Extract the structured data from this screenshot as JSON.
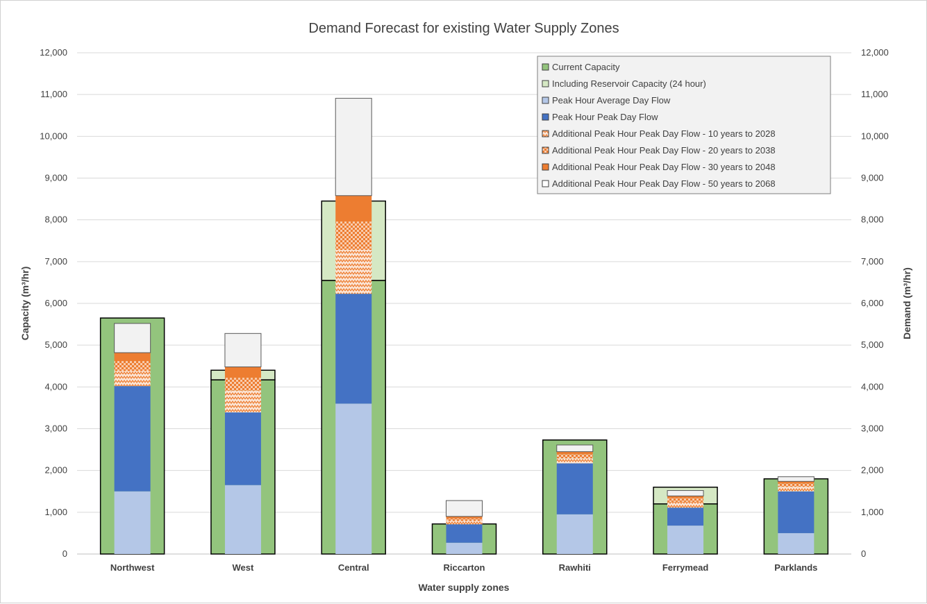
{
  "chart_data": {
    "type": "bar",
    "title": "Demand Forecast for existing Water Supply Zones",
    "xlabel": "Water supply zones",
    "ylabel_left": "Capacity (m³/hr)",
    "ylabel_right": "Demand (m³/hr)",
    "ylim": [
      0,
      12000
    ],
    "y_ticks": [
      "0",
      "1,000",
      "2,000",
      "3,000",
      "4,000",
      "5,000",
      "6,000",
      "7,000",
      "8,000",
      "9,000",
      "10,000",
      "11,000",
      "12,000"
    ],
    "grid": true,
    "legend_position": "top-right",
    "categories": [
      "Northwest",
      "West",
      "Central",
      "Riccarton",
      "Rawhiti",
      "Ferrymead",
      "Parklands"
    ],
    "capacity_series": [
      {
        "name": "Current Capacity",
        "color": "#93c47d",
        "values": [
          5650,
          4170,
          6550,
          720,
          2730,
          1200,
          1800
        ]
      },
      {
        "name": "Including Reservoir Capacity (24 hour)",
        "color": "#d5e8c4",
        "values": [
          0,
          230,
          1900,
          0,
          0,
          400,
          0
        ]
      }
    ],
    "demand_series": [
      {
        "name": "Peak Hour Average Day Flow",
        "color": "#b4c7e7",
        "pattern": "solid",
        "values": [
          1500,
          1650,
          3600,
          270,
          950,
          680,
          500
        ]
      },
      {
        "name": "Peak Hour Peak Day Flow",
        "color": "#4472c4",
        "pattern": "solid",
        "values": [
          2520,
          1740,
          2630,
          440,
          1220,
          430,
          1000
        ]
      },
      {
        "name": "Additional Peak Hour Peak Day Flow - 10 years to 2028",
        "color": "#ed7d31",
        "pattern": "zigzag",
        "values": [
          360,
          520,
          1050,
          80,
          120,
          140,
          110
        ]
      },
      {
        "name": "Additional Peak Hour Peak Day Flow - 20 years to 2038",
        "color": "#ed7d31",
        "pattern": "checker",
        "values": [
          240,
          310,
          680,
          60,
          100,
          90,
          80
        ]
      },
      {
        "name": "Additional Peak Hour Peak Day Flow - 30 years to 2048",
        "color": "#ed7d31",
        "pattern": "solid",
        "values": [
          200,
          260,
          620,
          50,
          60,
          50,
          50
        ]
      },
      {
        "name": "Additional Peak Hour Peak Day Flow - 50 years to 2068",
        "color": "#f2f2f2",
        "pattern": "outline",
        "values": [
          700,
          800,
          2330,
          380,
          160,
          130,
          110
        ]
      }
    ]
  }
}
